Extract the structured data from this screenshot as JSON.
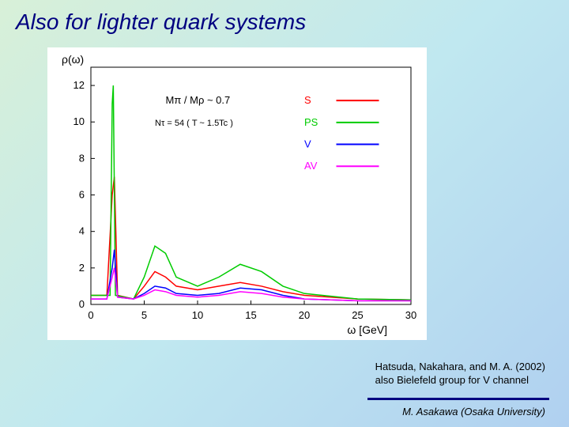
{
  "title": "Also for lighter quark systems",
  "citation_line1": "Hatsuda, Nakahara, and M. A. (2002)",
  "citation_line2": "also Bielefeld group for V channel",
  "footer": "M. Asakawa (Osaka University)",
  "chart": {
    "type": "line",
    "ylabel": "ρ(ω)",
    "xlabel": "ω [GeV]",
    "xlim": [
      0,
      30
    ],
    "ylim": [
      0,
      13
    ],
    "xticks": [
      0,
      5,
      10,
      15,
      20,
      25,
      30
    ],
    "yticks": [
      0,
      2,
      4,
      6,
      8,
      10,
      12
    ],
    "background_color": "#ffffff",
    "annotation1": "Mπ / Mρ ~ 0.7",
    "annotation2": "Nτ = 54  ( T ~ 1.5Tc )",
    "legend": [
      {
        "label": "S",
        "color": "#ff0000"
      },
      {
        "label": "PS",
        "color": "#00cc00"
      },
      {
        "label": "V",
        "color": "#0000ff"
      },
      {
        "label": "AV",
        "color": "#ff00ff"
      }
    ],
    "series": {
      "S": {
        "color": "#ff0000",
        "points": [
          [
            0,
            0.5
          ],
          [
            1.5,
            0.5
          ],
          [
            2,
            6
          ],
          [
            2.2,
            7
          ],
          [
            2.5,
            0.5
          ],
          [
            4,
            0.3
          ],
          [
            5,
            1
          ],
          [
            6,
            1.8
          ],
          [
            7,
            1.5
          ],
          [
            8,
            1
          ],
          [
            10,
            0.8
          ],
          [
            12,
            1
          ],
          [
            14,
            1.2
          ],
          [
            16,
            1
          ],
          [
            18,
            0.7
          ],
          [
            20,
            0.5
          ],
          [
            25,
            0.3
          ],
          [
            30,
            0.25
          ]
        ]
      },
      "PS": {
        "color": "#00cc00",
        "points": [
          [
            0,
            0.5
          ],
          [
            1.8,
            0.5
          ],
          [
            2,
            11
          ],
          [
            2.1,
            12
          ],
          [
            2.3,
            0.5
          ],
          [
            4,
            0.3
          ],
          [
            5,
            1.5
          ],
          [
            6,
            3.2
          ],
          [
            7,
            2.8
          ],
          [
            8,
            1.5
          ],
          [
            10,
            1
          ],
          [
            12,
            1.5
          ],
          [
            14,
            2.2
          ],
          [
            16,
            1.8
          ],
          [
            18,
            1
          ],
          [
            20,
            0.6
          ],
          [
            25,
            0.3
          ],
          [
            30,
            0.25
          ]
        ]
      },
      "V": {
        "color": "#0000ff",
        "points": [
          [
            0,
            0.3
          ],
          [
            1.5,
            0.3
          ],
          [
            2,
            2
          ],
          [
            2.2,
            3
          ],
          [
            2.5,
            0.4
          ],
          [
            4,
            0.3
          ],
          [
            5,
            0.6
          ],
          [
            6,
            1
          ],
          [
            7,
            0.9
          ],
          [
            8,
            0.6
          ],
          [
            10,
            0.5
          ],
          [
            12,
            0.6
          ],
          [
            14,
            0.9
          ],
          [
            16,
            0.8
          ],
          [
            18,
            0.5
          ],
          [
            20,
            0.3
          ],
          [
            25,
            0.2
          ],
          [
            30,
            0.2
          ]
        ]
      },
      "AV": {
        "color": "#ff00ff",
        "points": [
          [
            0,
            0.3
          ],
          [
            1.5,
            0.3
          ],
          [
            2,
            1.5
          ],
          [
            2.2,
            2
          ],
          [
            2.5,
            0.4
          ],
          [
            4,
            0.3
          ],
          [
            5,
            0.5
          ],
          [
            6,
            0.8
          ],
          [
            7,
            0.7
          ],
          [
            8,
            0.5
          ],
          [
            10,
            0.4
          ],
          [
            12,
            0.5
          ],
          [
            14,
            0.7
          ],
          [
            16,
            0.6
          ],
          [
            18,
            0.4
          ],
          [
            20,
            0.3
          ],
          [
            25,
            0.2
          ],
          [
            30,
            0.2
          ]
        ]
      }
    }
  }
}
